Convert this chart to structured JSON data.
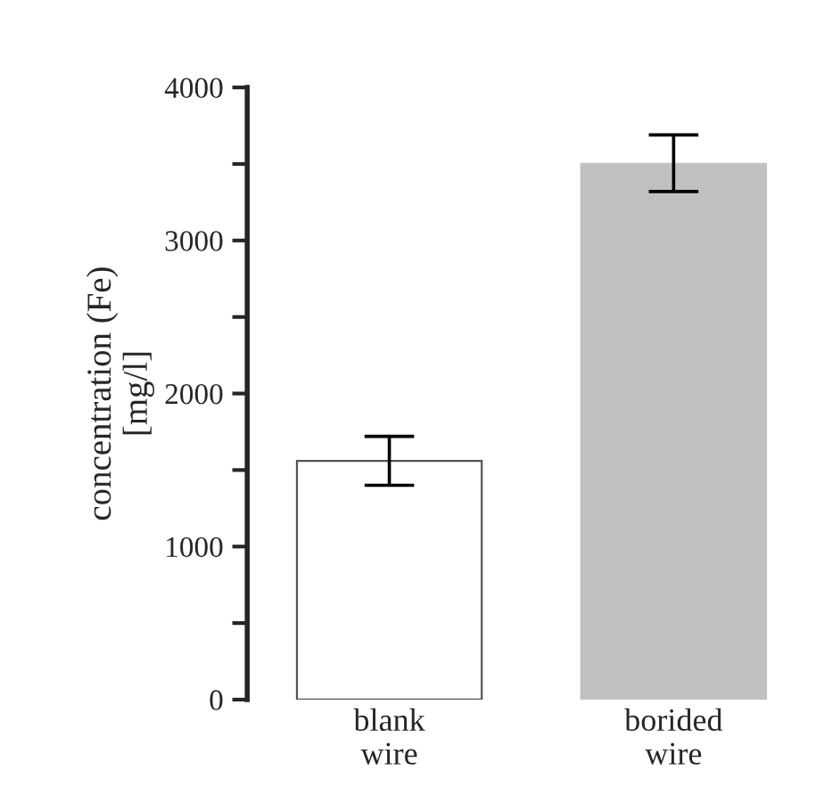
{
  "chart_data": {
    "type": "bar",
    "ylabel": "concentration (Fe)\n[mg/l]",
    "categories": [
      "blank\nwire",
      "borided\nwire"
    ],
    "values": [
      1560,
      3500
    ],
    "colors": [
      "#ffffff",
      "#c0c0c0"
    ],
    "errors": [
      [
        1400,
        1720
      ],
      [
        3320,
        3690
      ]
    ],
    "ylim": [
      0,
      4000
    ],
    "yticks": [
      0,
      {
        "value": 500,
        "label": null
      },
      1000,
      {
        "value": 1500,
        "label": null
      },
      2000,
      {
        "value": 2500,
        "label": null
      },
      3000,
      {
        "value": 3500,
        "label": null
      },
      4000
    ],
    "grid": false,
    "legend": false
  }
}
